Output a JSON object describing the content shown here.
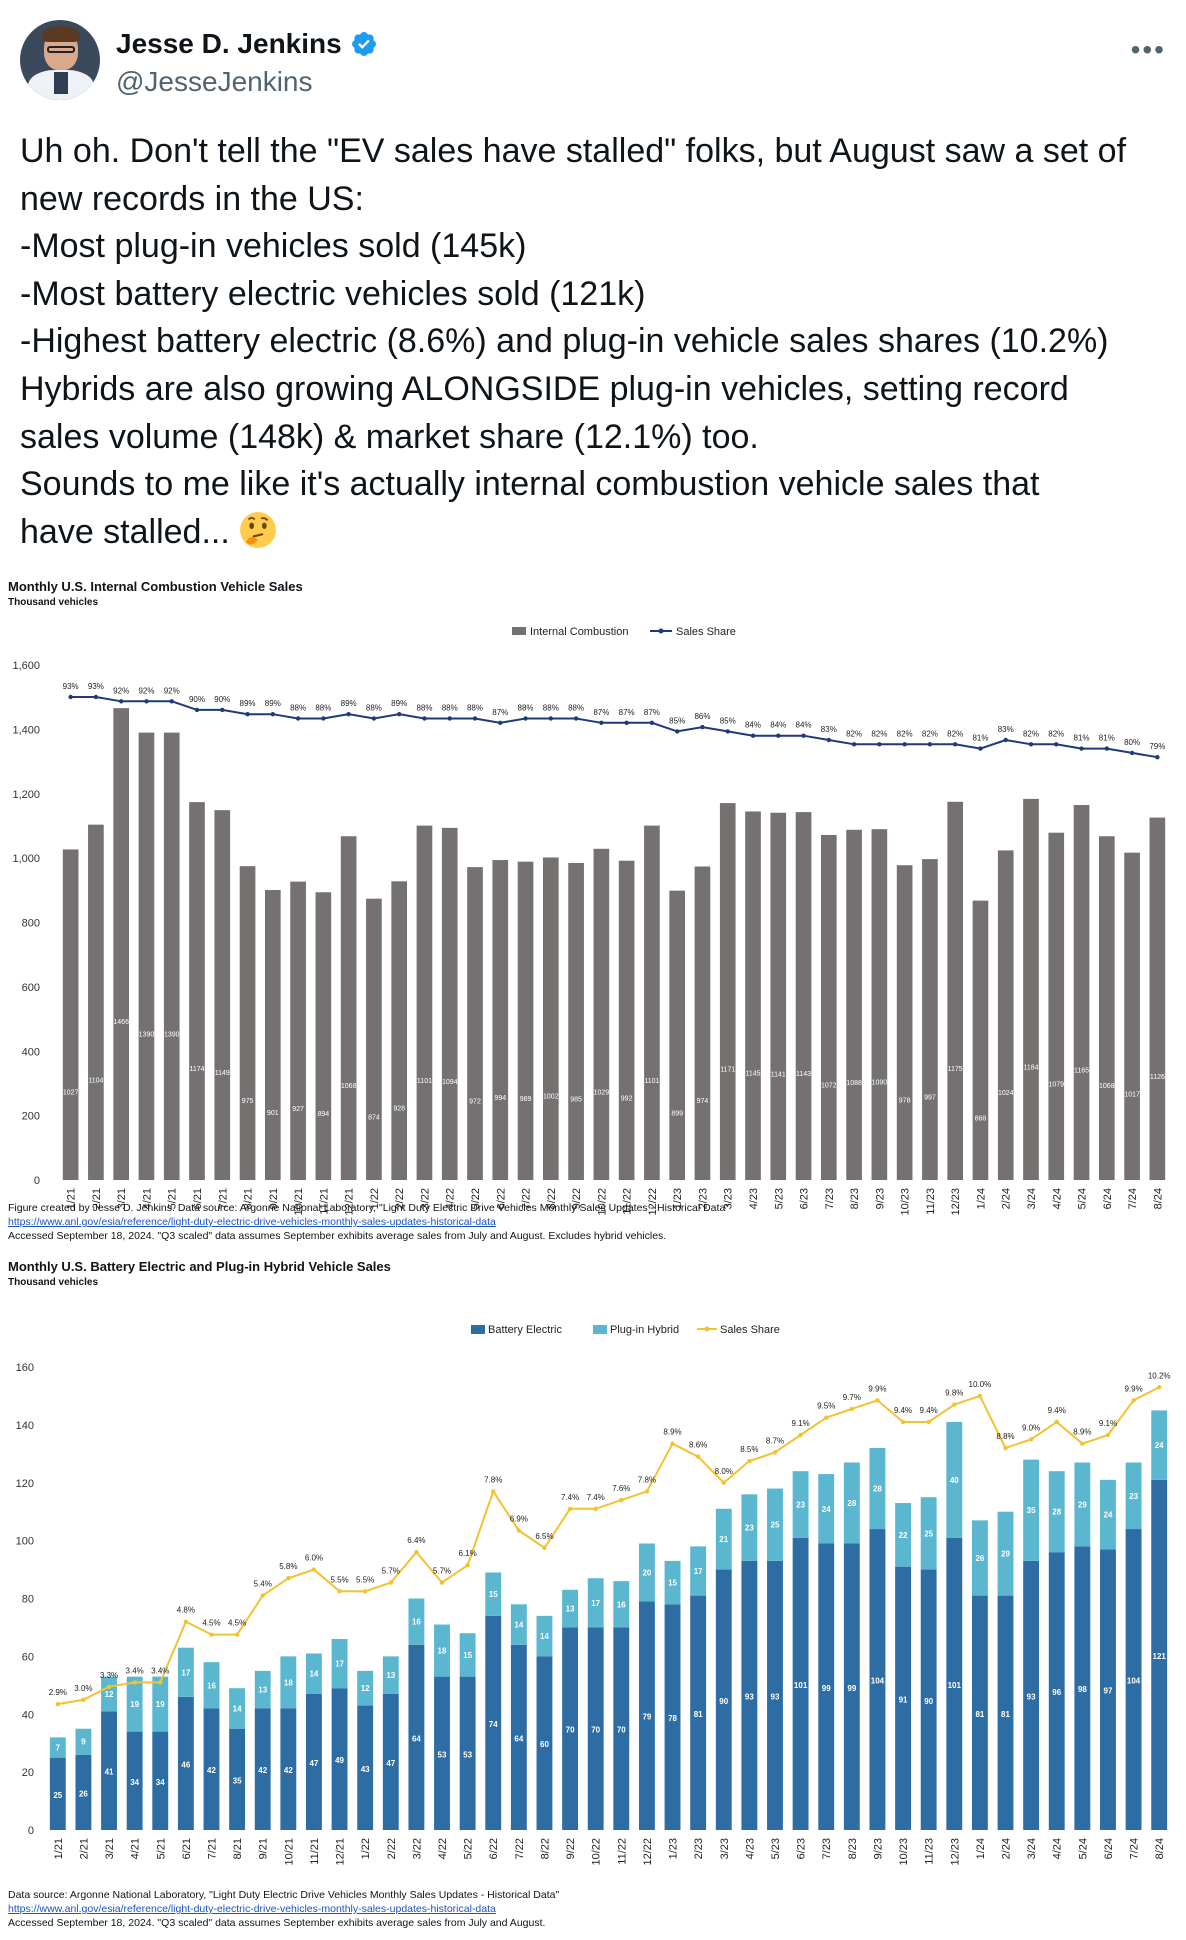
{
  "tweet": {
    "author_name": "Jesse D. Jenkins",
    "handle": "@JesseJenkins",
    "more_icon": "more-horizontal-icon",
    "verified_icon": "verified-badge-icon",
    "lines": [
      "Uh oh. Don't tell the \"EV sales have stalled\" folks, but August saw a set of",
      "new records in the US:",
      "-Most plug-in vehicles sold (145k)",
      "-Most battery electric vehicles sold (121k)",
      "-Highest battery electric (8.6%) and plug-in vehicle sales shares (10.2%)",
      "Hybrids are also growing ALONGSIDE plug-in vehicles, setting record",
      "sales volume (148k) & market share (12.1%) too.",
      "Sounds to me like it's actually internal combustion vehicle sales that",
      "have stalled... "
    ],
    "emoji": "thinking-face-emoji"
  },
  "chart1_text": {
    "title": "Monthly U.S. Internal Combustion Vehicle Sales",
    "subtitle": "Thousand vehicles",
    "legend_bar": "Internal Combustion",
    "legend_line": "Sales Share",
    "foot1": "Figure created by Jesse D. Jenkins. Data source: Argonne National Laboratory, \"Light Duty Electric Drive Vehicles Monthly Sales Updates - Historical Data\"",
    "foot2": "https://www.anl.gov/esia/reference/light-duty-electric-drive-vehicles-monthly-sales-updates-historical-data",
    "foot3": "Accessed September 18, 2024. \"Q3 scaled\" data assumes September exhibits average sales from July and August. Excludes hybrid vehicles."
  },
  "chart2_text": {
    "title": "Monthly U.S. Battery Electric and Plug-in Hybrid Vehicle Sales",
    "subtitle": "Thousand vehicles",
    "legend_bev": "Battery Electric",
    "legend_phev": "Plug-in Hybrid",
    "legend_line": "Sales Share",
    "foot1": "Data source: Argonne National Laboratory, \"Light Duty Electric Drive Vehicles Monthly Sales Updates - Historical Data\"",
    "foot2": "https://www.anl.gov/esia/reference/light-duty-electric-drive-vehicles-monthly-sales-updates-historical-data",
    "foot3": "Accessed September 18, 2024. \"Q3 scaled\" data assumes September exhibits average sales from July and August."
  },
  "colors": {
    "ice_bar": "#767171",
    "ice_line": "#1f3a7a",
    "bev": "#2e6da4",
    "phev": "#5bb7cf",
    "ev_line": "#f2c232",
    "link": "#1a53c7"
  },
  "chart_data": [
    {
      "type": "bar",
      "title": "Monthly U.S. Internal Combustion Vehicle Sales",
      "subtitle": "Thousand vehicles",
      "categories": [
        "1/21",
        "2/21",
        "3/21",
        "4/21",
        "5/21",
        "6/21",
        "7/21",
        "8/21",
        "9/21",
        "10/21",
        "11/21",
        "12/21",
        "1/22",
        "2/22",
        "3/22",
        "4/22",
        "5/22",
        "6/22",
        "7/22",
        "8/22",
        "9/22",
        "10/22",
        "11/22",
        "12/22",
        "1/23",
        "2/23",
        "3/23",
        "4/23",
        "5/23",
        "6/23",
        "7/23",
        "8/23",
        "9/23",
        "10/23",
        "11/23",
        "12/23",
        "1/24",
        "2/24",
        "3/24",
        "4/24",
        "5/24",
        "6/24",
        "7/24",
        "8/24"
      ],
      "series": [
        {
          "name": "Internal Combustion",
          "values": [
            1027,
            1104,
            1466,
            1390,
            1390,
            1174,
            1149,
            975,
            901,
            927,
            894,
            1068,
            874,
            928,
            1101,
            1094,
            972,
            994,
            989,
            1002,
            985,
            1029,
            992,
            1101,
            899,
            974,
            1171,
            1145,
            1141,
            1143,
            1072,
            1088,
            1090,
            978,
            997,
            1175,
            868,
            1024,
            1184,
            1079,
            1165,
            1068,
            1017,
            1126
          ]
        },
        {
          "name": "Sales Share",
          "type": "line",
          "values": [
            "93%",
            "93%",
            "92%",
            "92%",
            "92%",
            "90%",
            "90%",
            "89%",
            "89%",
            "88%",
            "88%",
            "89%",
            "88%",
            "89%",
            "88%",
            "88%",
            "88%",
            "87%",
            "88%",
            "88%",
            "88%",
            "87%",
            "87%",
            "87%",
            "85%",
            "86%",
            "85%",
            "84%",
            "84%",
            "84%",
            "83%",
            "82%",
            "82%",
            "82%",
            "82%",
            "82%",
            "81%",
            "83%",
            "82%",
            "82%",
            "81%",
            "81%",
            "80%",
            "79%"
          ]
        }
      ],
      "ylim": [
        0,
        1600
      ],
      "yticks": [
        "0",
        "200",
        "400",
        "600",
        "800",
        "1,000",
        "1,200",
        "1,400",
        "1,600"
      ],
      "legend": "top-center",
      "grid": false
    },
    {
      "type": "bar",
      "stacked": true,
      "title": "Monthly U.S. Battery Electric and Plug-in Hybrid Vehicle Sales",
      "subtitle": "Thousand vehicles",
      "categories": [
        "1/21",
        "2/21",
        "3/21",
        "4/21",
        "5/21",
        "6/21",
        "7/21",
        "8/21",
        "9/21",
        "10/21",
        "11/21",
        "12/21",
        "1/22",
        "2/22",
        "3/22",
        "4/22",
        "5/22",
        "6/22",
        "7/22",
        "8/22",
        "9/22",
        "10/22",
        "11/22",
        "12/22",
        "1/23",
        "2/23",
        "3/23",
        "4/23",
        "5/23",
        "6/23",
        "7/23",
        "8/23",
        "9/23",
        "10/23",
        "11/23",
        "12/23",
        "1/24",
        "2/24",
        "3/24",
        "4/24",
        "5/24",
        "6/24",
        "7/24",
        "8/24"
      ],
      "series": [
        {
          "name": "Battery Electric",
          "values": [
            25,
            26,
            41,
            34,
            34,
            46,
            42,
            35,
            42,
            42,
            47,
            49,
            43,
            47,
            64,
            53,
            53,
            74,
            64,
            60,
            70,
            70,
            70,
            79,
            78,
            81,
            90,
            93,
            93,
            101,
            99,
            99,
            104,
            91,
            90,
            101,
            81,
            81,
            93,
            96,
            98,
            97,
            104,
            121
          ]
        },
        {
          "name": "Plug-in Hybrid",
          "values": [
            7,
            9,
            12,
            19,
            19,
            17,
            16,
            14,
            13,
            18,
            14,
            17,
            12,
            13,
            16,
            18,
            15,
            15,
            14,
            14,
            13,
            17,
            16,
            20,
            15,
            17,
            21,
            23,
            25,
            23,
            24,
            28,
            28,
            22,
            25,
            40,
            26,
            29,
            35,
            28,
            29,
            24,
            23,
            24
          ]
        },
        {
          "name": "Sales Share",
          "type": "line",
          "values": [
            "2.9%",
            "3.0%",
            "3.3%",
            "3.4%",
            "3.4%",
            "4.8%",
            "4.5%",
            "4.5%",
            "5.4%",
            "5.8%",
            "6.0%",
            "5.5%",
            "5.5%",
            "5.7%",
            "6.4%",
            "5.7%",
            "6.1%",
            "7.8%",
            "6.9%",
            "6.5%",
            "7.4%",
            "7.4%",
            "7.6%",
            "7.8%",
            "8.9%",
            "8.6%",
            "8.0%",
            "8.5%",
            "8.7%",
            "9.1%",
            "9.5%",
            "9.7%",
            "9.9%",
            "9.4%",
            "9.4%",
            "9.8%",
            "10.0%",
            "8.8%",
            "9.0%",
            "9.4%",
            "8.9%",
            "9.1%",
            "9.9%",
            "10.2%"
          ]
        }
      ],
      "ylim": [
        0,
        160
      ],
      "yticks": [
        "0",
        "20",
        "40",
        "60",
        "80",
        "100",
        "120",
        "140",
        "160"
      ],
      "legend": "top-center",
      "grid": false
    }
  ]
}
